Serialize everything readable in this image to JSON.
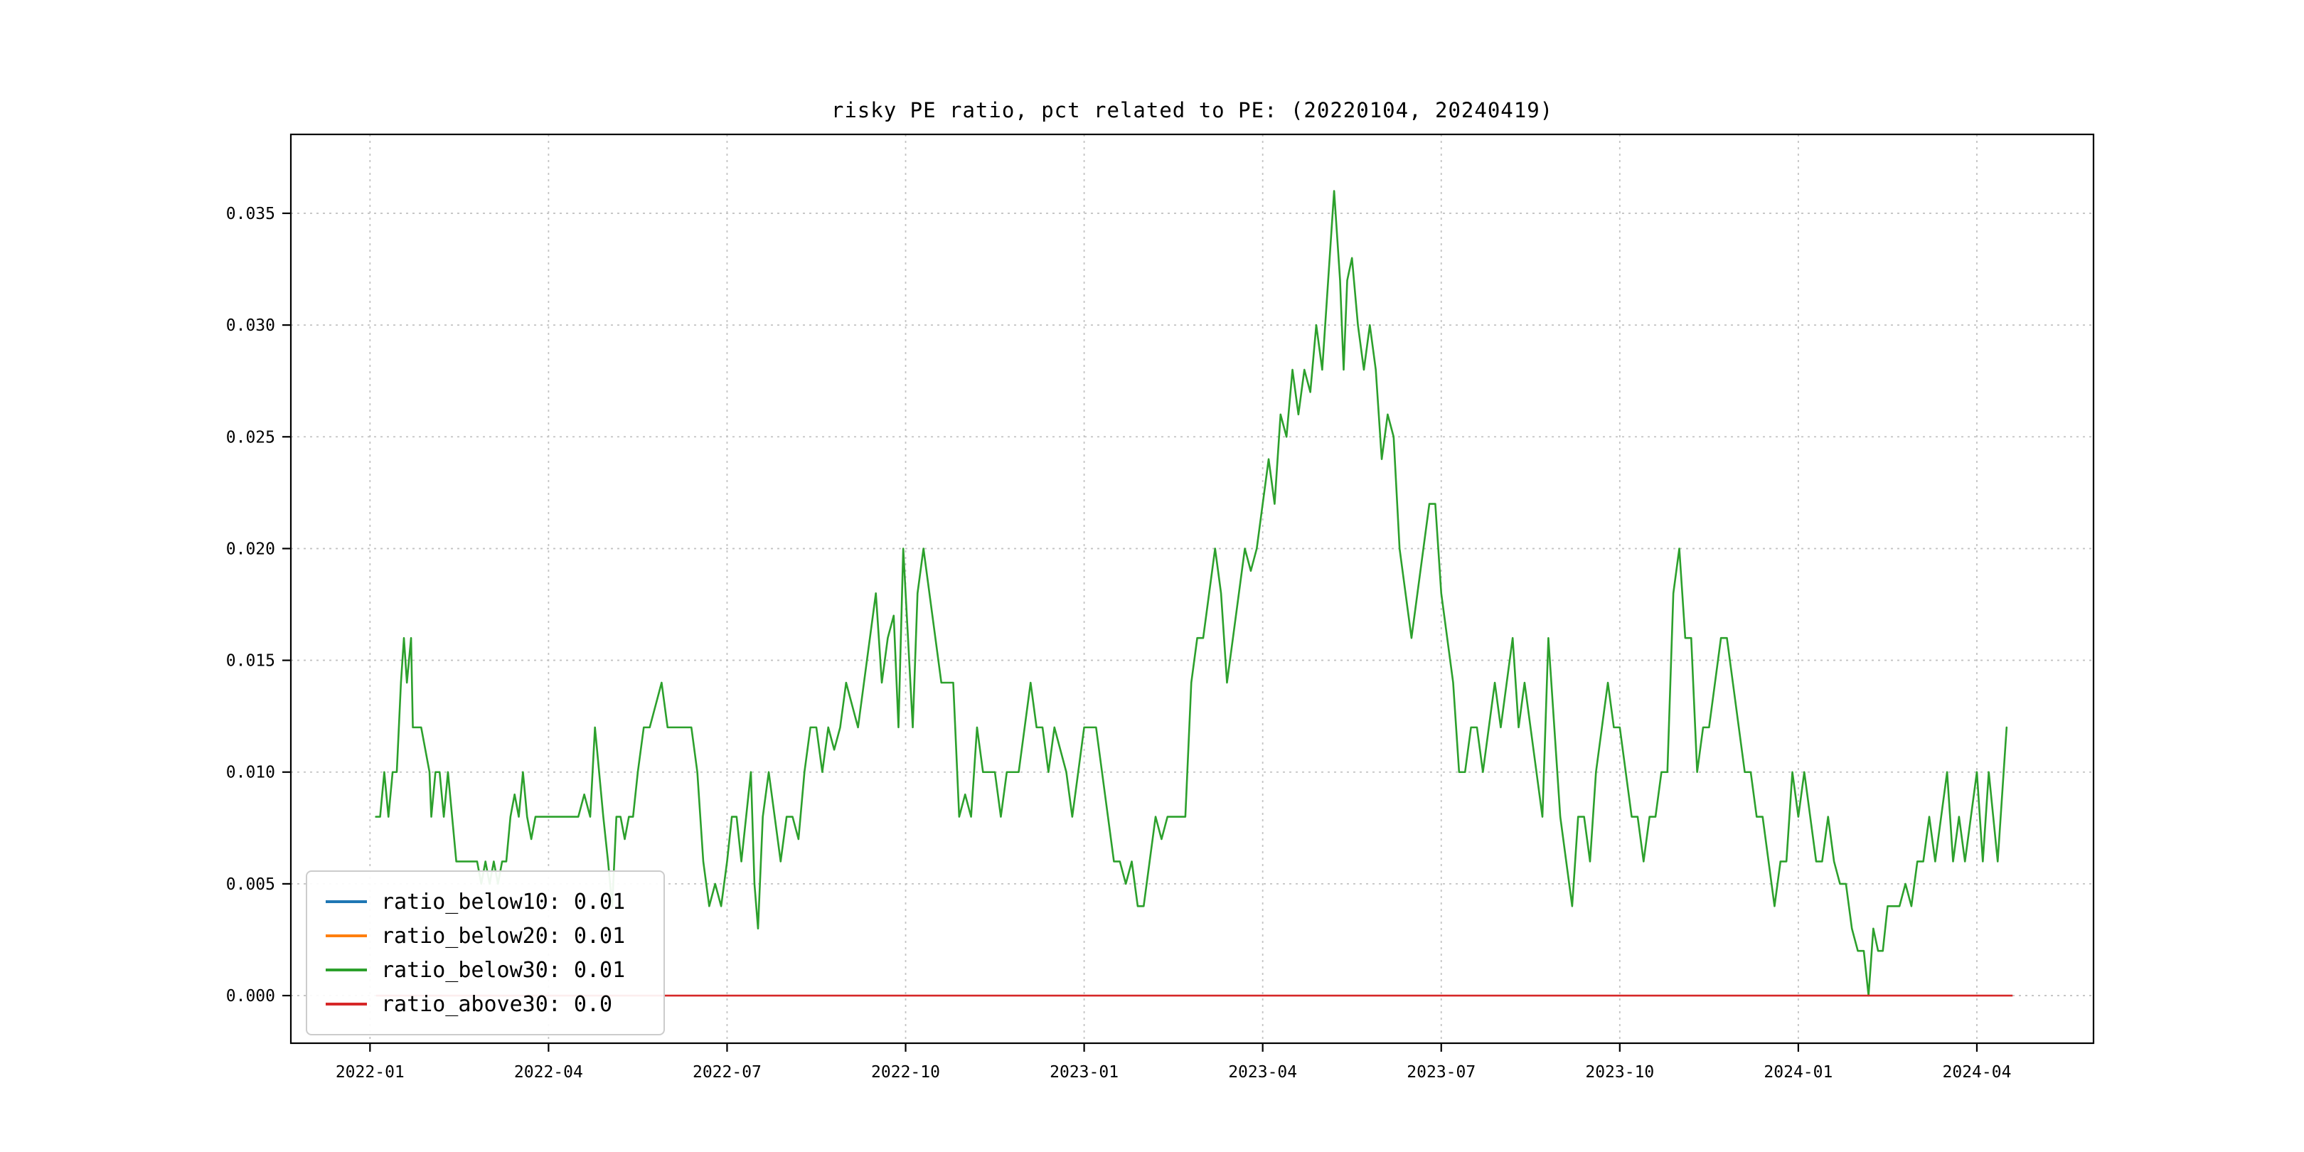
{
  "chart_data": {
    "type": "line",
    "title": "risky PE ratio, pct related to PE: (20220104, 20240419)",
    "xlabel": "",
    "ylabel": "",
    "grid": "dashed, both axes",
    "legend_position": "lower left",
    "x_unit": "months since 2022-01",
    "x_range": [
      -1.33,
      28.96
    ],
    "y_range": [
      -0.00213,
      0.03853
    ],
    "x_ticks": {
      "labels": [
        "2022-01",
        "2022-04",
        "2022-07",
        "2022-10",
        "2023-01",
        "2023-04",
        "2023-07",
        "2023-10",
        "2024-01",
        "2024-04"
      ],
      "months": [
        0,
        3,
        6,
        9,
        12,
        15,
        18,
        21,
        24,
        27
      ]
    },
    "y_ticks": {
      "labels": [
        "0.000",
        "0.005",
        "0.010",
        "0.015",
        "0.020",
        "0.025",
        "0.030",
        "0.035"
      ],
      "values": [
        0.0,
        0.005,
        0.01,
        0.015,
        0.02,
        0.025,
        0.03,
        0.035
      ]
    },
    "series": [
      {
        "name": "ratio_below10",
        "legend_label": "ratio_below10: 0.01",
        "color": "#1f77b4",
        "points": null,
        "note": "line not visible in plot (coincides with / hidden beneath ratio_below30)"
      },
      {
        "name": "ratio_below20",
        "legend_label": "ratio_below20: 0.01",
        "color": "#ff7f0e",
        "points": null,
        "note": "line not visible in plot (coincides with / hidden beneath ratio_below30)"
      },
      {
        "name": "ratio_below30",
        "legend_label": "ratio_below30: 0.01",
        "color": "#2ca02c",
        "points": [
          [
            0.1,
            0.008
          ],
          [
            0.17,
            0.008
          ],
          [
            0.24,
            0.01
          ],
          [
            0.31,
            0.008
          ],
          [
            0.38,
            0.01
          ],
          [
            0.45,
            0.01
          ],
          [
            0.52,
            0.014
          ],
          [
            0.57,
            0.016
          ],
          [
            0.62,
            0.014
          ],
          [
            0.69,
            0.016
          ],
          [
            0.72,
            0.012
          ],
          [
            0.79,
            0.012
          ],
          [
            0.86,
            0.012
          ],
          [
            0.93,
            0.011
          ],
          [
            1.0,
            0.01
          ],
          [
            1.03,
            0.008
          ],
          [
            1.1,
            0.01
          ],
          [
            1.17,
            0.01
          ],
          [
            1.24,
            0.008
          ],
          [
            1.31,
            0.01
          ],
          [
            1.38,
            0.008
          ],
          [
            1.45,
            0.006
          ],
          [
            1.52,
            0.006
          ],
          [
            1.59,
            0.006
          ],
          [
            1.66,
            0.006
          ],
          [
            1.73,
            0.006
          ],
          [
            1.8,
            0.006
          ],
          [
            1.87,
            0.005
          ],
          [
            1.94,
            0.006
          ],
          [
            2.01,
            0.005
          ],
          [
            2.08,
            0.006
          ],
          [
            2.15,
            0.005
          ],
          [
            2.22,
            0.006
          ],
          [
            2.29,
            0.006
          ],
          [
            2.36,
            0.008
          ],
          [
            2.43,
            0.009
          ],
          [
            2.5,
            0.008
          ],
          [
            2.57,
            0.01
          ],
          [
            2.64,
            0.008
          ],
          [
            2.71,
            0.007
          ],
          [
            2.78,
            0.008
          ],
          [
            2.85,
            0.008
          ],
          [
            2.92,
            0.008
          ],
          [
            3.0,
            0.008
          ],
          [
            3.1,
            0.008
          ],
          [
            3.2,
            0.008
          ],
          [
            3.3,
            0.008
          ],
          [
            3.4,
            0.008
          ],
          [
            3.5,
            0.008
          ],
          [
            3.6,
            0.009
          ],
          [
            3.7,
            0.008
          ],
          [
            3.78,
            0.012
          ],
          [
            3.85,
            0.01
          ],
          [
            3.92,
            0.008
          ],
          [
            4.0,
            0.006
          ],
          [
            4.07,
            0.004
          ],
          [
            4.14,
            0.008
          ],
          [
            4.21,
            0.008
          ],
          [
            4.28,
            0.007
          ],
          [
            4.35,
            0.008
          ],
          [
            4.42,
            0.008
          ],
          [
            4.5,
            0.01
          ],
          [
            4.6,
            0.012
          ],
          [
            4.7,
            0.012
          ],
          [
            4.8,
            0.013
          ],
          [
            4.9,
            0.014
          ],
          [
            5.0,
            0.012
          ],
          [
            5.1,
            0.012
          ],
          [
            5.2,
            0.012
          ],
          [
            5.3,
            0.012
          ],
          [
            5.4,
            0.012
          ],
          [
            5.5,
            0.01
          ],
          [
            5.6,
            0.006
          ],
          [
            5.7,
            0.004
          ],
          [
            5.8,
            0.005
          ],
          [
            5.9,
            0.004
          ],
          [
            6.0,
            0.006
          ],
          [
            6.08,
            0.008
          ],
          [
            6.16,
            0.008
          ],
          [
            6.24,
            0.006
          ],
          [
            6.32,
            0.008
          ],
          [
            6.4,
            0.01
          ],
          [
            6.46,
            0.005
          ],
          [
            6.52,
            0.003
          ],
          [
            6.6,
            0.008
          ],
          [
            6.7,
            0.01
          ],
          [
            6.8,
            0.008
          ],
          [
            6.9,
            0.006
          ],
          [
            7.0,
            0.008
          ],
          [
            7.1,
            0.008
          ],
          [
            7.2,
            0.007
          ],
          [
            7.3,
            0.01
          ],
          [
            7.4,
            0.012
          ],
          [
            7.5,
            0.012
          ],
          [
            7.6,
            0.01
          ],
          [
            7.7,
            0.012
          ],
          [
            7.8,
            0.011
          ],
          [
            7.9,
            0.012
          ],
          [
            8.0,
            0.014
          ],
          [
            8.1,
            0.013
          ],
          [
            8.2,
            0.012
          ],
          [
            8.3,
            0.014
          ],
          [
            8.4,
            0.016
          ],
          [
            8.5,
            0.018
          ],
          [
            8.6,
            0.014
          ],
          [
            8.7,
            0.016
          ],
          [
            8.8,
            0.017
          ],
          [
            8.88,
            0.012
          ],
          [
            8.96,
            0.02
          ],
          [
            9.04,
            0.016
          ],
          [
            9.12,
            0.012
          ],
          [
            9.2,
            0.018
          ],
          [
            9.3,
            0.02
          ],
          [
            9.4,
            0.018
          ],
          [
            9.5,
            0.016
          ],
          [
            9.6,
            0.014
          ],
          [
            9.7,
            0.014
          ],
          [
            9.8,
            0.014
          ],
          [
            9.9,
            0.008
          ],
          [
            10.0,
            0.009
          ],
          [
            10.1,
            0.008
          ],
          [
            10.2,
            0.012
          ],
          [
            10.3,
            0.01
          ],
          [
            10.4,
            0.01
          ],
          [
            10.5,
            0.01
          ],
          [
            10.6,
            0.008
          ],
          [
            10.7,
            0.01
          ],
          [
            10.8,
            0.01
          ],
          [
            10.9,
            0.01
          ],
          [
            11.0,
            0.012
          ],
          [
            11.1,
            0.014
          ],
          [
            11.2,
            0.012
          ],
          [
            11.3,
            0.012
          ],
          [
            11.4,
            0.01
          ],
          [
            11.5,
            0.012
          ],
          [
            11.6,
            0.011
          ],
          [
            11.7,
            0.01
          ],
          [
            11.8,
            0.008
          ],
          [
            11.9,
            0.01
          ],
          [
            12.0,
            0.012
          ],
          [
            12.1,
            0.012
          ],
          [
            12.2,
            0.012
          ],
          [
            12.3,
            0.01
          ],
          [
            12.4,
            0.008
          ],
          [
            12.5,
            0.006
          ],
          [
            12.6,
            0.006
          ],
          [
            12.7,
            0.005
          ],
          [
            12.8,
            0.006
          ],
          [
            12.9,
            0.004
          ],
          [
            13.0,
            0.004
          ],
          [
            13.1,
            0.006
          ],
          [
            13.2,
            0.008
          ],
          [
            13.3,
            0.007
          ],
          [
            13.4,
            0.008
          ],
          [
            13.5,
            0.008
          ],
          [
            13.6,
            0.008
          ],
          [
            13.7,
            0.008
          ],
          [
            13.8,
            0.014
          ],
          [
            13.9,
            0.016
          ],
          [
            14.0,
            0.016
          ],
          [
            14.1,
            0.018
          ],
          [
            14.2,
            0.02
          ],
          [
            14.3,
            0.018
          ],
          [
            14.4,
            0.014
          ],
          [
            14.5,
            0.016
          ],
          [
            14.6,
            0.018
          ],
          [
            14.7,
            0.02
          ],
          [
            14.8,
            0.019
          ],
          [
            14.9,
            0.02
          ],
          [
            15.0,
            0.022
          ],
          [
            15.1,
            0.024
          ],
          [
            15.2,
            0.022
          ],
          [
            15.3,
            0.026
          ],
          [
            15.4,
            0.025
          ],
          [
            15.5,
            0.028
          ],
          [
            15.6,
            0.026
          ],
          [
            15.7,
            0.028
          ],
          [
            15.8,
            0.027
          ],
          [
            15.9,
            0.03
          ],
          [
            16.0,
            0.028
          ],
          [
            16.1,
            0.032
          ],
          [
            16.2,
            0.036
          ],
          [
            16.3,
            0.032
          ],
          [
            16.36,
            0.028
          ],
          [
            16.42,
            0.032
          ],
          [
            16.5,
            0.033
          ],
          [
            16.6,
            0.03
          ],
          [
            16.7,
            0.028
          ],
          [
            16.8,
            0.03
          ],
          [
            16.9,
            0.028
          ],
          [
            17.0,
            0.024
          ],
          [
            17.1,
            0.026
          ],
          [
            17.2,
            0.025
          ],
          [
            17.3,
            0.02
          ],
          [
            17.4,
            0.018
          ],
          [
            17.5,
            0.016
          ],
          [
            17.6,
            0.018
          ],
          [
            17.7,
            0.02
          ],
          [
            17.8,
            0.022
          ],
          [
            17.9,
            0.022
          ],
          [
            18.0,
            0.018
          ],
          [
            18.1,
            0.016
          ],
          [
            18.2,
            0.014
          ],
          [
            18.3,
            0.01
          ],
          [
            18.4,
            0.01
          ],
          [
            18.5,
            0.012
          ],
          [
            18.6,
            0.012
          ],
          [
            18.7,
            0.01
          ],
          [
            18.8,
            0.012
          ],
          [
            18.9,
            0.014
          ],
          [
            19.0,
            0.012
          ],
          [
            19.1,
            0.014
          ],
          [
            19.2,
            0.016
          ],
          [
            19.3,
            0.012
          ],
          [
            19.4,
            0.014
          ],
          [
            19.5,
            0.012
          ],
          [
            19.6,
            0.01
          ],
          [
            19.7,
            0.008
          ],
          [
            19.8,
            0.016
          ],
          [
            19.9,
            0.012
          ],
          [
            20.0,
            0.008
          ],
          [
            20.1,
            0.006
          ],
          [
            20.2,
            0.004
          ],
          [
            20.3,
            0.008
          ],
          [
            20.4,
            0.008
          ],
          [
            20.5,
            0.006
          ],
          [
            20.6,
            0.01
          ],
          [
            20.7,
            0.012
          ],
          [
            20.8,
            0.014
          ],
          [
            20.9,
            0.012
          ],
          [
            21.0,
            0.012
          ],
          [
            21.1,
            0.01
          ],
          [
            21.2,
            0.008
          ],
          [
            21.3,
            0.008
          ],
          [
            21.4,
            0.006
          ],
          [
            21.5,
            0.008
          ],
          [
            21.6,
            0.008
          ],
          [
            21.7,
            0.01
          ],
          [
            21.8,
            0.01
          ],
          [
            21.9,
            0.018
          ],
          [
            22.0,
            0.02
          ],
          [
            22.1,
            0.016
          ],
          [
            22.2,
            0.016
          ],
          [
            22.3,
            0.01
          ],
          [
            22.4,
            0.012
          ],
          [
            22.5,
            0.012
          ],
          [
            22.6,
            0.014
          ],
          [
            22.7,
            0.016
          ],
          [
            22.8,
            0.016
          ],
          [
            22.9,
            0.014
          ],
          [
            23.0,
            0.012
          ],
          [
            23.1,
            0.01
          ],
          [
            23.2,
            0.01
          ],
          [
            23.3,
            0.008
          ],
          [
            23.4,
            0.008
          ],
          [
            23.5,
            0.006
          ],
          [
            23.6,
            0.004
          ],
          [
            23.7,
            0.006
          ],
          [
            23.8,
            0.006
          ],
          [
            23.9,
            0.01
          ],
          [
            24.0,
            0.008
          ],
          [
            24.1,
            0.01
          ],
          [
            24.2,
            0.008
          ],
          [
            24.3,
            0.006
          ],
          [
            24.4,
            0.006
          ],
          [
            24.5,
            0.008
          ],
          [
            24.6,
            0.006
          ],
          [
            24.7,
            0.005
          ],
          [
            24.8,
            0.005
          ],
          [
            24.9,
            0.003
          ],
          [
            25.0,
            0.002
          ],
          [
            25.1,
            0.002
          ],
          [
            25.18,
            0.0
          ],
          [
            25.26,
            0.003
          ],
          [
            25.34,
            0.002
          ],
          [
            25.42,
            0.002
          ],
          [
            25.5,
            0.004
          ],
          [
            25.6,
            0.004
          ],
          [
            25.7,
            0.004
          ],
          [
            25.8,
            0.005
          ],
          [
            25.9,
            0.004
          ],
          [
            26.0,
            0.006
          ],
          [
            26.1,
            0.006
          ],
          [
            26.2,
            0.008
          ],
          [
            26.3,
            0.006
          ],
          [
            26.4,
            0.008
          ],
          [
            26.5,
            0.01
          ],
          [
            26.6,
            0.006
          ],
          [
            26.7,
            0.008
          ],
          [
            26.8,
            0.006
          ],
          [
            26.9,
            0.008
          ],
          [
            27.0,
            0.01
          ],
          [
            27.1,
            0.006
          ],
          [
            27.2,
            0.01
          ],
          [
            27.35,
            0.006
          ],
          [
            27.5,
            0.012
          ]
        ]
      },
      {
        "name": "ratio_above30",
        "legend_label": "ratio_above30: 0.0",
        "color": "#d62728",
        "constant_y": 0.0,
        "x_span": [
          0.1,
          27.6
        ]
      }
    ]
  }
}
